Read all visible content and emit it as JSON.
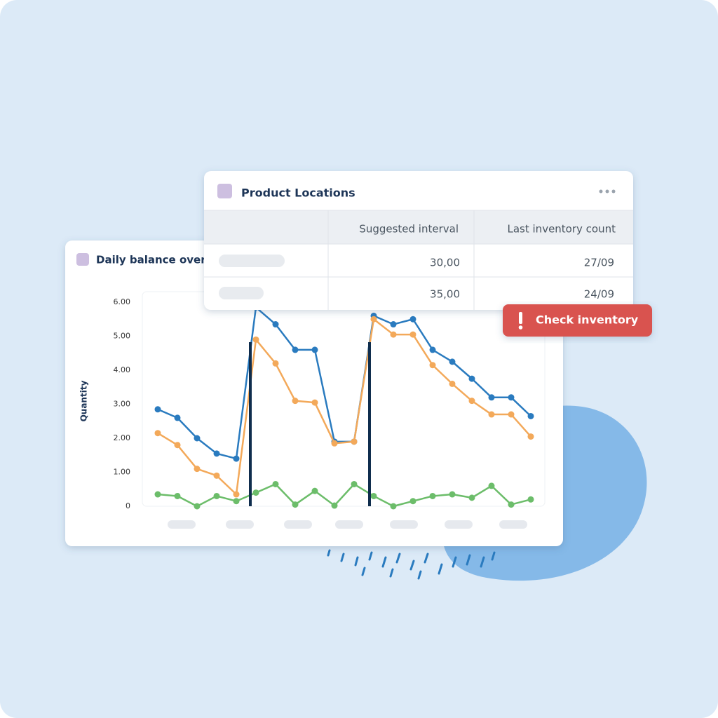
{
  "chart_data": {
    "type": "line",
    "title": "Daily balance overvi",
    "y_label": "Quantity",
    "categories": [
      null,
      null,
      null,
      null,
      null,
      null,
      null,
      null,
      null,
      null,
      null,
      null,
      null,
      null,
      null,
      null,
      null,
      null,
      null,
      null
    ],
    "series": [
      {
        "color": "#2a7bbf",
        "values": [
          2.85,
          2.6,
          2.0,
          1.55,
          1.4,
          5.85,
          5.35,
          4.6,
          4.6,
          1.9,
          1.9,
          5.6,
          5.35,
          5.5,
          4.6,
          4.25,
          3.75,
          3.2,
          3.2,
          2.65
        ]
      },
      {
        "color": "#f3a95a",
        "values": [
          2.15,
          1.8,
          1.1,
          0.9,
          0.35,
          4.9,
          4.2,
          3.1,
          3.05,
          1.85,
          1.9,
          5.5,
          5.05,
          5.05,
          4.15,
          3.6,
          3.1,
          2.7,
          2.7,
          2.05
        ]
      },
      {
        "color": "#6cbd6a",
        "values": [
          0.35,
          0.3,
          0,
          0.3,
          0.15,
          0.4,
          0.65,
          0.05,
          0.45,
          0.02,
          0.65,
          0.3,
          0,
          0.15,
          0.3,
          0.35,
          0.25,
          0.6,
          0.05,
          0.2
        ]
      }
    ],
    "ylim": [
      0,
      6
    ],
    "yticks": [
      0,
      {
        "value": 1,
        "label": "1.00"
      },
      {
        "value": 2,
        "label": "2.00"
      },
      {
        "value": 3,
        "label": "3.00"
      },
      {
        "value": 4,
        "label": "4.00"
      },
      {
        "value": 5,
        "label": "5.00"
      },
      {
        "value": 6,
        "label": "6.00"
      }
    ],
    "grid": false
  },
  "table": {
    "title": "Product Locations",
    "header": [
      "Suggested interval",
      "Last inventory count"
    ],
    "rows": [
      [
        "30,00",
        "27/09"
      ],
      [
        "35,00",
        "24/09"
      ]
    ]
  },
  "alert": {
    "label": "Check inventory"
  }
}
